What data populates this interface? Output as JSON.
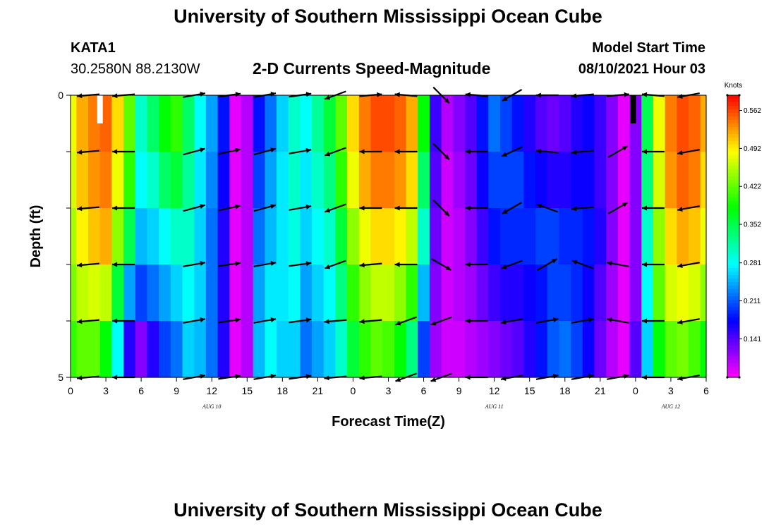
{
  "header": {
    "title": "University of Southern Mississippi Ocean Cube",
    "station": "KATA1",
    "location": "30.2580N  88.2130W",
    "chart_title": "2-D Currents Speed-Magnitude",
    "model_start_label": "Model Start Time",
    "model_start_value": "08/10/2021 Hour 03"
  },
  "footer": {
    "title": "University of Southern Mississippi Ocean Cube"
  },
  "chart_data": {
    "type": "heatmap",
    "title": "2-D Currents Speed-Magnitude",
    "xlabel": "Forecast Time(Z)",
    "ylabel": "Depth (ft)",
    "xlim": [
      0,
      54
    ],
    "ylim": [
      5,
      0
    ],
    "y_ticks": [
      0,
      1,
      2,
      3,
      4,
      5
    ],
    "y_tick_labels": [
      "0",
      "",
      "",
      "",
      "",
      "5"
    ],
    "x_tick_hours": [
      0,
      3,
      6,
      9,
      12,
      15,
      18,
      21,
      24,
      27,
      30,
      33,
      36,
      39,
      42,
      45,
      48,
      51,
      54
    ],
    "x_tick_labels": [
      "0",
      "3",
      "6",
      "9",
      "12",
      "15",
      "18",
      "21",
      "0",
      "3",
      "6",
      "9",
      "12",
      "15",
      "18",
      "21",
      "0",
      "3",
      "6"
    ],
    "dates": [
      {
        "label": "AUG  10",
        "hour": 12
      },
      {
        "label": "AUG  11",
        "hour": 36
      },
      {
        "label": "AUG  12",
        "hour": 51
      }
    ],
    "colorbar": {
      "title": "Knots",
      "min": 0.07,
      "max": 0.59,
      "tick_values": [
        0.562,
        0.492,
        0.422,
        0.352,
        0.281,
        0.211,
        0.141
      ],
      "tick_labels": [
        "0.562",
        "0.492",
        "0.422",
        "0.352",
        "0.281",
        "0.211",
        "0.141"
      ]
    },
    "speed_hours": [
      0,
      1,
      2,
      3,
      4,
      5,
      6,
      7,
      8,
      9,
      10,
      11,
      12,
      13,
      14,
      15,
      16,
      17,
      18,
      19,
      20,
      21,
      22,
      23,
      24,
      25,
      26,
      27,
      28,
      29,
      30,
      31,
      32,
      33,
      34,
      35,
      36,
      37,
      38,
      39,
      40,
      41,
      42,
      43,
      44,
      45,
      46,
      47,
      48,
      49,
      50,
      51,
      52,
      53,
      54
    ],
    "depth_layers": [
      0.25,
      0.75,
      1.25,
      1.75,
      2.25,
      2.75,
      3.25,
      3.75,
      4.25,
      4.75
    ],
    "speed": [
      [
        0.48,
        0.52,
        0.54,
        0.55,
        0.5,
        0.42,
        0.3,
        0.34,
        0.38,
        0.4,
        0.34,
        0.28,
        0.24,
        0.18,
        0.08,
        0.1,
        0.18,
        0.22,
        0.26,
        0.3,
        0.28,
        0.32,
        0.36,
        0.42,
        0.5,
        0.54,
        0.56,
        0.56,
        0.55,
        0.52,
        0.38,
        0.15,
        0.1,
        0.12,
        0.14,
        0.18,
        0.22,
        0.2,
        0.18,
        0.16,
        0.14,
        0.13,
        0.14,
        0.16,
        0.17,
        0.15,
        0.12,
        0.08,
        0.12,
        0.35,
        0.48,
        0.54,
        0.56,
        0.55,
        0.52
      ],
      [
        0.48,
        0.52,
        0.54,
        0.55,
        0.5,
        0.42,
        0.3,
        0.34,
        0.38,
        0.4,
        0.34,
        0.28,
        0.24,
        0.18,
        0.08,
        0.1,
        0.18,
        0.22,
        0.26,
        0.3,
        0.28,
        0.32,
        0.36,
        0.42,
        0.5,
        0.54,
        0.56,
        0.56,
        0.55,
        0.52,
        0.38,
        0.15,
        0.1,
        0.12,
        0.14,
        0.18,
        0.22,
        0.2,
        0.18,
        0.16,
        0.14,
        0.13,
        0.14,
        0.16,
        0.17,
        0.15,
        0.12,
        0.08,
        0.12,
        0.35,
        0.48,
        0.54,
        0.56,
        0.55,
        0.52
      ],
      [
        0.47,
        0.51,
        0.53,
        0.54,
        0.48,
        0.4,
        0.28,
        0.3,
        0.34,
        0.36,
        0.32,
        0.27,
        0.23,
        0.17,
        0.08,
        0.1,
        0.2,
        0.24,
        0.27,
        0.3,
        0.27,
        0.3,
        0.33,
        0.4,
        0.48,
        0.52,
        0.54,
        0.54,
        0.53,
        0.5,
        0.34,
        0.14,
        0.09,
        0.11,
        0.13,
        0.17,
        0.2,
        0.2,
        0.2,
        0.18,
        0.17,
        0.16,
        0.16,
        0.17,
        0.17,
        0.15,
        0.12,
        0.08,
        0.12,
        0.33,
        0.47,
        0.53,
        0.55,
        0.54,
        0.5
      ],
      [
        0.47,
        0.51,
        0.53,
        0.54,
        0.48,
        0.4,
        0.28,
        0.3,
        0.34,
        0.36,
        0.32,
        0.27,
        0.23,
        0.17,
        0.08,
        0.1,
        0.2,
        0.24,
        0.27,
        0.3,
        0.27,
        0.3,
        0.33,
        0.4,
        0.48,
        0.52,
        0.54,
        0.54,
        0.53,
        0.5,
        0.34,
        0.14,
        0.09,
        0.11,
        0.13,
        0.17,
        0.2,
        0.2,
        0.2,
        0.18,
        0.17,
        0.16,
        0.16,
        0.17,
        0.17,
        0.15,
        0.12,
        0.08,
        0.12,
        0.33,
        0.47,
        0.53,
        0.55,
        0.54,
        0.5
      ],
      [
        0.45,
        0.49,
        0.51,
        0.52,
        0.44,
        0.35,
        0.25,
        0.26,
        0.28,
        0.3,
        0.3,
        0.26,
        0.22,
        0.16,
        0.08,
        0.1,
        0.22,
        0.25,
        0.27,
        0.29,
        0.26,
        0.28,
        0.3,
        0.36,
        0.44,
        0.48,
        0.5,
        0.5,
        0.49,
        0.46,
        0.3,
        0.13,
        0.09,
        0.1,
        0.12,
        0.15,
        0.18,
        0.19,
        0.19,
        0.19,
        0.2,
        0.2,
        0.19,
        0.19,
        0.18,
        0.16,
        0.12,
        0.08,
        0.12,
        0.3,
        0.44,
        0.5,
        0.52,
        0.51,
        0.48
      ],
      [
        0.45,
        0.49,
        0.51,
        0.52,
        0.44,
        0.35,
        0.25,
        0.26,
        0.28,
        0.3,
        0.3,
        0.26,
        0.22,
        0.16,
        0.08,
        0.1,
        0.22,
        0.25,
        0.27,
        0.29,
        0.26,
        0.28,
        0.3,
        0.36,
        0.44,
        0.48,
        0.5,
        0.5,
        0.49,
        0.46,
        0.3,
        0.13,
        0.09,
        0.1,
        0.12,
        0.15,
        0.18,
        0.19,
        0.19,
        0.19,
        0.2,
        0.2,
        0.19,
        0.19,
        0.18,
        0.16,
        0.12,
        0.08,
        0.12,
        0.3,
        0.44,
        0.5,
        0.52,
        0.51,
        0.48
      ],
      [
        0.43,
        0.46,
        0.47,
        0.46,
        0.36,
        0.24,
        0.2,
        0.22,
        0.24,
        0.26,
        0.28,
        0.26,
        0.22,
        0.16,
        0.08,
        0.1,
        0.24,
        0.27,
        0.27,
        0.28,
        0.24,
        0.26,
        0.28,
        0.33,
        0.4,
        0.44,
        0.46,
        0.46,
        0.44,
        0.4,
        0.25,
        0.12,
        0.09,
        0.1,
        0.11,
        0.13,
        0.15,
        0.16,
        0.16,
        0.17,
        0.18,
        0.2,
        0.2,
        0.19,
        0.17,
        0.14,
        0.11,
        0.08,
        0.12,
        0.28,
        0.42,
        0.47,
        0.48,
        0.47,
        0.44
      ],
      [
        0.43,
        0.46,
        0.47,
        0.46,
        0.36,
        0.24,
        0.2,
        0.22,
        0.24,
        0.26,
        0.28,
        0.26,
        0.22,
        0.16,
        0.08,
        0.1,
        0.24,
        0.27,
        0.27,
        0.28,
        0.24,
        0.26,
        0.28,
        0.33,
        0.4,
        0.44,
        0.46,
        0.46,
        0.44,
        0.4,
        0.25,
        0.12,
        0.09,
        0.1,
        0.11,
        0.13,
        0.15,
        0.16,
        0.16,
        0.17,
        0.18,
        0.2,
        0.2,
        0.19,
        0.17,
        0.14,
        0.11,
        0.08,
        0.12,
        0.28,
        0.42,
        0.47,
        0.48,
        0.47,
        0.44
      ],
      [
        0.4,
        0.42,
        0.42,
        0.38,
        0.28,
        0.16,
        0.12,
        0.16,
        0.2,
        0.22,
        0.26,
        0.25,
        0.22,
        0.16,
        0.08,
        0.1,
        0.25,
        0.28,
        0.26,
        0.26,
        0.22,
        0.24,
        0.26,
        0.3,
        0.36,
        0.4,
        0.42,
        0.41,
        0.38,
        0.33,
        0.2,
        0.11,
        0.09,
        0.09,
        0.1,
        0.11,
        0.12,
        0.13,
        0.14,
        0.16,
        0.18,
        0.21,
        0.22,
        0.2,
        0.17,
        0.13,
        0.1,
        0.08,
        0.14,
        0.26,
        0.38,
        0.42,
        0.43,
        0.41,
        0.38
      ],
      [
        0.4,
        0.42,
        0.42,
        0.38,
        0.28,
        0.16,
        0.12,
        0.16,
        0.2,
        0.22,
        0.26,
        0.25,
        0.22,
        0.16,
        0.08,
        0.1,
        0.25,
        0.28,
        0.26,
        0.26,
        0.22,
        0.24,
        0.26,
        0.3,
        0.36,
        0.4,
        0.42,
        0.41,
        0.38,
        0.33,
        0.2,
        0.11,
        0.09,
        0.09,
        0.1,
        0.11,
        0.12,
        0.13,
        0.14,
        0.16,
        0.18,
        0.21,
        0.22,
        0.2,
        0.17,
        0.13,
        0.1,
        0.08,
        0.14,
        0.26,
        0.38,
        0.42,
        0.43,
        0.41,
        0.38
      ]
    ],
    "vector_hours": [
      1.5,
      4.5,
      10.5,
      13.5,
      16.5,
      19.5,
      22.5,
      25.5,
      28.5,
      31.5,
      34.5,
      37.5,
      40.5,
      43.5,
      46.5,
      49.5,
      52.5
    ],
    "vector_depths": [
      0,
      1,
      2,
      3,
      4,
      5
    ],
    "vector_directions_deg": [
      [
        185,
        185,
        10,
        8,
        10,
        8,
        200,
        5,
        175,
        315,
        175,
        210,
        180,
        185,
        5,
        175,
        190
      ],
      [
        185,
        180,
        15,
        12,
        15,
        10,
        200,
        180,
        180,
        315,
        180,
        205,
        175,
        185,
        30,
        180,
        190
      ],
      [
        185,
        180,
        15,
        12,
        15,
        10,
        200,
        180,
        180,
        315,
        180,
        210,
        160,
        185,
        30,
        180,
        190
      ],
      [
        185,
        180,
        10,
        8,
        10,
        8,
        200,
        185,
        180,
        330,
        180,
        200,
        30,
        160,
        170,
        180,
        190
      ],
      [
        185,
        180,
        10,
        8,
        10,
        8,
        185,
        185,
        200,
        200,
        180,
        190,
        10,
        10,
        170,
        180,
        190
      ],
      [
        185,
        180,
        10,
        8,
        10,
        8,
        185,
        185,
        200,
        200,
        180,
        190,
        10,
        10,
        10,
        180,
        190
      ]
    ],
    "markers": [
      {
        "hour": 2.5,
        "color": "#ffffff"
      },
      {
        "hour": 47.8,
        "color": "#000000"
      }
    ]
  }
}
